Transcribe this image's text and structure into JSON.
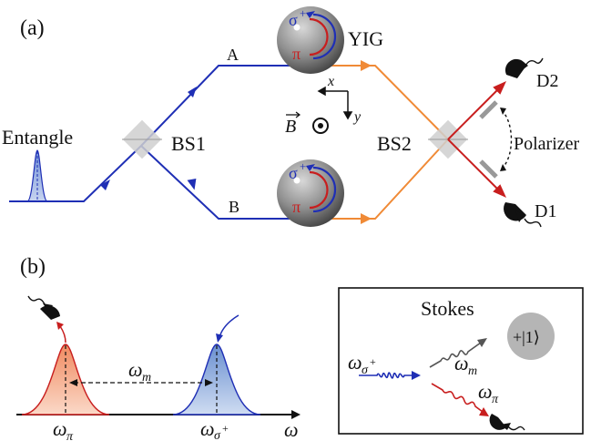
{
  "panel_a": {
    "tag": "(a)",
    "source_label": "Entangle",
    "bs1_label": "BS1",
    "bs2_label": "BS2",
    "arm_a_label": "A",
    "arm_b_label": "B",
    "yig_label": "YIG",
    "sphere_top_sigma": "σ",
    "sphere_sigma_sup": "+",
    "sphere_pi": "π",
    "field_label": "B",
    "axis_x_label": "x",
    "axis_y_label": "y",
    "detector_top_label": "D2",
    "detector_bottom_label": "D1",
    "polarizer_label": "Polarizer"
  },
  "panel_b": {
    "tag": "(b)",
    "omega_symbol": "ω",
    "peak_left_sub": "π",
    "peak_right_sub": "σ",
    "peak_right_sup": "+",
    "magnon_sub": "m",
    "axis_label": "ω",
    "inset_title": "Stokes",
    "inset_state": "+|1⟩",
    "inset_in_sub": "σ",
    "inset_in_sup": "+",
    "inset_magnon_sub": "m",
    "inset_photon_sub": "π"
  },
  "colors": {
    "blue_path": "#1f2fb5",
    "orange_path": "#f08a36",
    "red_arrow": "#c81e1e",
    "sphere_gray": "#8c8c8c",
    "peak_red_fill": "#f4b79c",
    "peak_blue_fill": "#9db4dc"
  }
}
